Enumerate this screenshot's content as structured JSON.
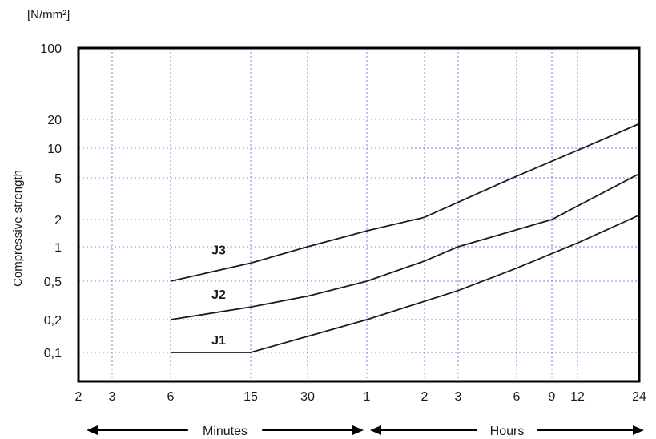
{
  "chart_data": {
    "type": "line",
    "unit_label": "[N/mm²]",
    "ylabel": "Compressive strength",
    "yscale": "log",
    "ylim": [
      0.05,
      100
    ],
    "y_ticks": [
      {
        "value": 0.1,
        "label": "0,1"
      },
      {
        "value": 0.2,
        "label": "0,2"
      },
      {
        "value": 0.5,
        "label": "0,5"
      },
      {
        "value": 1,
        "label": "1"
      },
      {
        "value": 2,
        "label": "2"
      },
      {
        "value": 5,
        "label": "5"
      },
      {
        "value": 10,
        "label": "10"
      },
      {
        "value": 20,
        "label": "20"
      },
      {
        "value": 100,
        "label": "100"
      }
    ],
    "xscale": "log",
    "x_units": "minutes",
    "xlim": [
      2,
      1440
    ],
    "x_ticks": [
      {
        "value": 2,
        "label": "2"
      },
      {
        "value": 3,
        "label": "3"
      },
      {
        "value": 6,
        "label": "6"
      },
      {
        "value": 15,
        "label": "15"
      },
      {
        "value": 30,
        "label": "30"
      },
      {
        "value": 60,
        "label": "1"
      },
      {
        "value": 120,
        "label": "2"
      },
      {
        "value": 180,
        "label": "3"
      },
      {
        "value": 360,
        "label": "6"
      },
      {
        "value": 540,
        "label": "9"
      },
      {
        "value": 720,
        "label": "12"
      },
      {
        "value": 1440,
        "label": "24"
      }
    ],
    "periods": [
      {
        "label": "Minutes",
        "from": 2,
        "to": 60
      },
      {
        "label": "Hours",
        "from": 60,
        "to": 1440
      }
    ],
    "grid": true,
    "series": [
      {
        "name": "J1",
        "x": [
          6,
          15,
          60,
          180,
          360,
          720,
          1440
        ],
        "y": [
          0.1,
          0.1,
          0.2,
          0.4,
          0.65,
          1.1,
          2.2
        ]
      },
      {
        "name": "J2",
        "x": [
          6,
          15,
          30,
          60,
          120,
          180,
          540,
          1440
        ],
        "y": [
          0.2,
          0.27,
          0.35,
          0.5,
          0.75,
          1.0,
          2.0,
          5.5
        ]
      },
      {
        "name": "J3",
        "x": [
          6,
          15,
          30,
          60,
          120,
          360,
          720,
          1440
        ],
        "y": [
          0.5,
          0.72,
          1.0,
          1.5,
          2.1,
          5.2,
          9.5,
          18
        ]
      }
    ]
  }
}
